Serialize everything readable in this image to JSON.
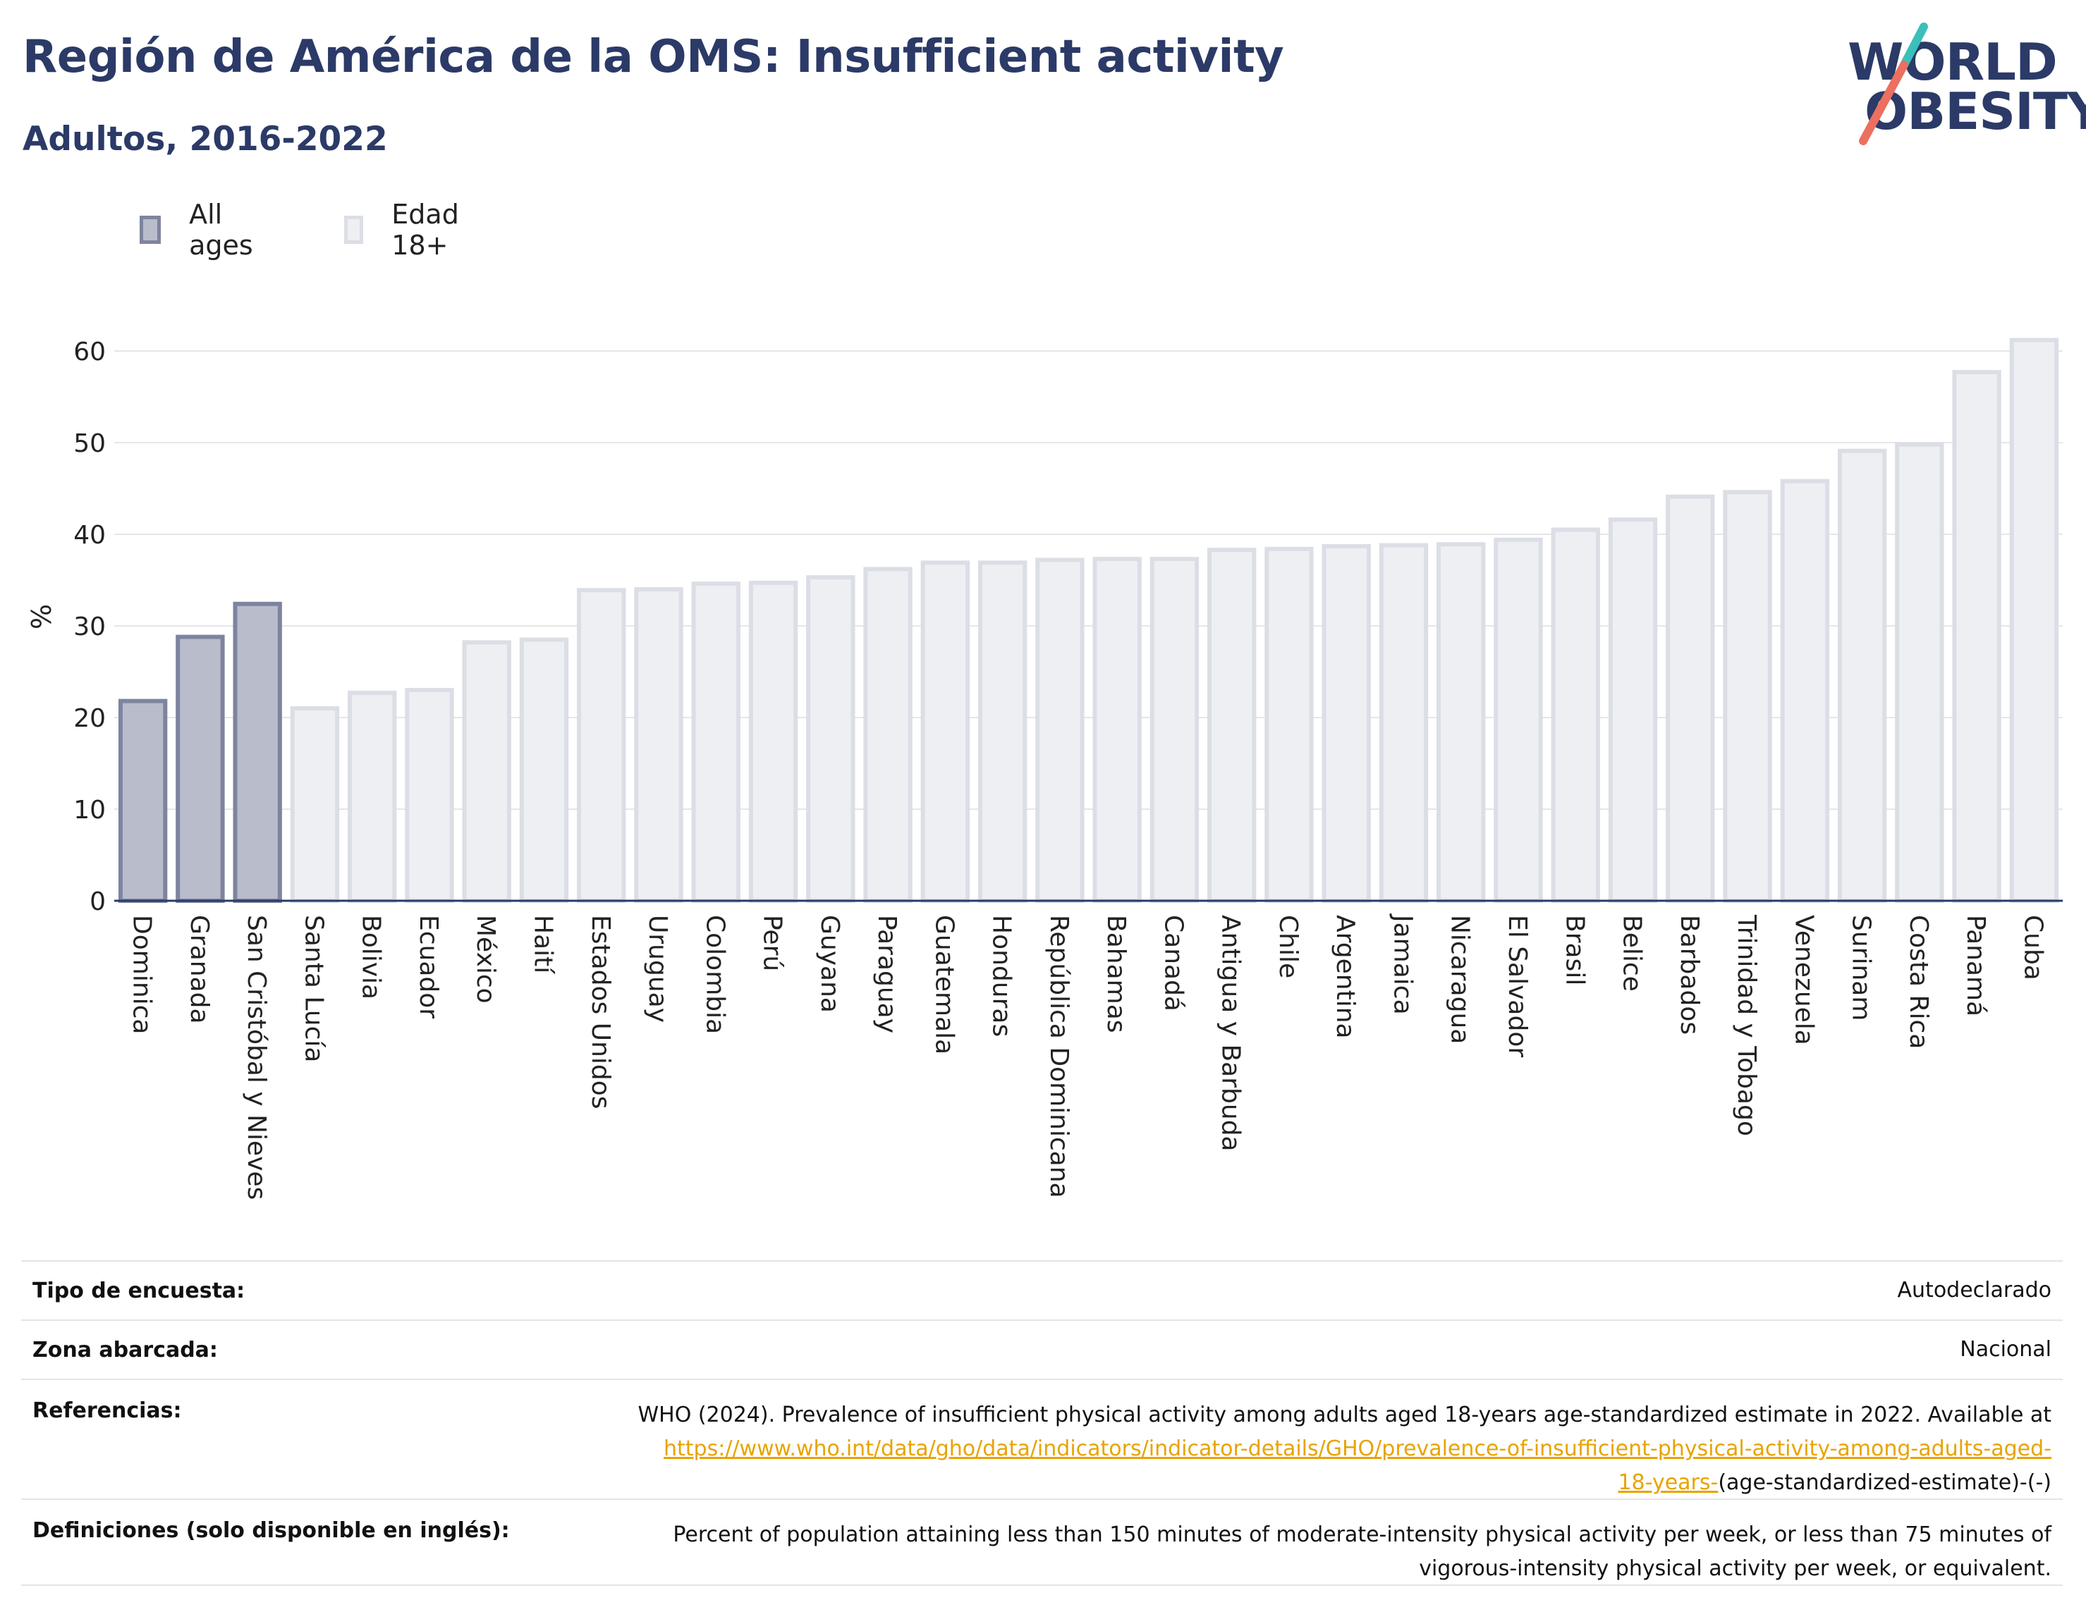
{
  "header": {
    "title": "Región de América de la OMS: Insufficient activity",
    "subtitle": "Adultos, 2016-2022"
  },
  "logo": {
    "line1": "WORLD",
    "line2": "OBESITY"
  },
  "colors": {
    "title": "#2b3a67",
    "all_ages_fill": "#b9bccb",
    "all_ages_stroke": "#7e849f",
    "adult_fill": "#eeeff3",
    "adult_stroke": "#dcdee6",
    "logo_teal": "#3bbfb9",
    "logo_coral": "#ec6f5f",
    "link": "#e8a300"
  },
  "legend": [
    {
      "label": "All ages",
      "key": "all_ages"
    },
    {
      "label": "Edad 18+",
      "key": "adult"
    }
  ],
  "chart_data": {
    "type": "bar",
    "title": "Región de América de la OMS: Insufficient activity",
    "subtitle": "Adultos, 2016-2022",
    "ylabel": "%",
    "ylim": [
      0,
      62
    ],
    "yticks": [
      0,
      10,
      20,
      30,
      40,
      50,
      60
    ],
    "grid": true,
    "legend_position": "top-left",
    "categories": [
      "Dominica",
      "Granada",
      "San Cristóbal y Nieves",
      "Santa Lucía",
      "Bolivia",
      "Ecuador",
      "México",
      "Haití",
      "Estados Unidos",
      "Uruguay",
      "Colombia",
      "Perú",
      "Guyana",
      "Paraguay",
      "Guatemala",
      "Honduras",
      "República Dominicana",
      "Bahamas",
      "Canadá",
      "Antigua y Barbuda",
      "Chile",
      "Argentina",
      "Jamaica",
      "Nicaragua",
      "El Salvador",
      "Brasil",
      "Belice",
      "Barbados",
      "Trinidad y Tobago",
      "Venezuela",
      "Surinam",
      "Costa Rica",
      "Panamá",
      "Cuba"
    ],
    "values": [
      21.8,
      28.8,
      32.4,
      21.0,
      22.7,
      23.0,
      28.2,
      28.5,
      33.9,
      34.0,
      34.6,
      34.7,
      35.3,
      36.2,
      36.9,
      36.9,
      37.2,
      37.3,
      37.3,
      38.3,
      38.4,
      38.7,
      38.8,
      38.9,
      39.4,
      40.5,
      41.6,
      44.1,
      44.6,
      45.8,
      49.1,
      49.8,
      57.7,
      61.2
    ],
    "series_key": [
      "all_ages",
      "all_ages",
      "all_ages",
      "adult",
      "adult",
      "adult",
      "adult",
      "adult",
      "adult",
      "adult",
      "adult",
      "adult",
      "adult",
      "adult",
      "adult",
      "adult",
      "adult",
      "adult",
      "adult",
      "adult",
      "adult",
      "adult",
      "adult",
      "adult",
      "adult",
      "adult",
      "adult",
      "adult",
      "adult",
      "adult",
      "adult",
      "adult",
      "adult",
      "adult"
    ]
  },
  "info": {
    "survey_type_label": "Tipo de encuesta:",
    "survey_type_value": "Autodeclarado",
    "area_label": "Zona abarcada:",
    "area_value": "Nacional",
    "references_label": "Referencias:",
    "references_text": "WHO (2024). Prevalence of insufficient physical activity among adults aged 18-years age-standardized estimate in 2022. Available at",
    "references_link_1": "https://www.who.int/data/gho/data/indicators/indicator-details/GHO/prevalence-of-insufficient-physical-activity-among-adults-aged-",
    "references_link_2": "18-years-",
    "references_tail": "(age-standardized-estimate)-(-)",
    "definitions_label": "Definiciones (solo disponible en inglés):",
    "definitions_line1": "Percent of population attaining less than 150 minutes of moderate-intensity physical activity per week, or less than 75 minutes of",
    "definitions_line2": "vigorous-intensity physical activity per week, or equivalent."
  }
}
